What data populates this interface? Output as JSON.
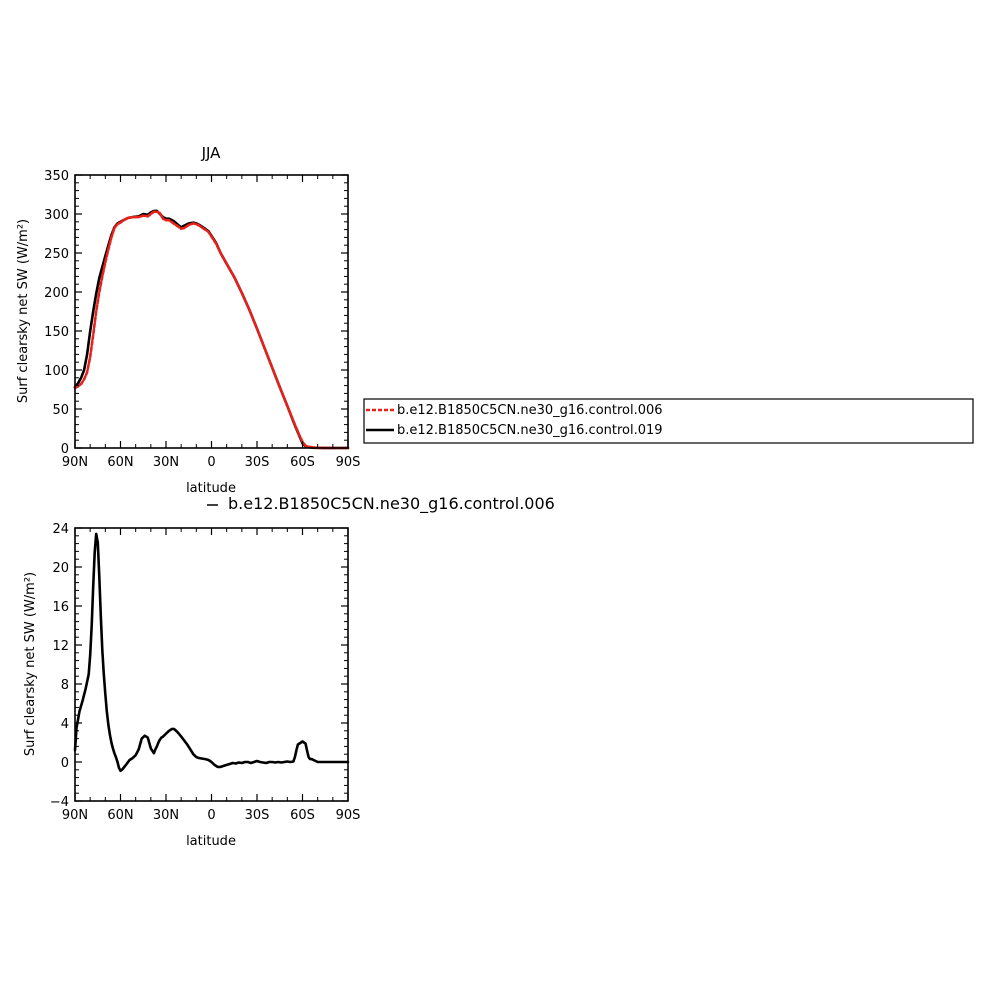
{
  "chart_data": [
    {
      "type": "line",
      "title": "JJA",
      "xlabel": "latitude",
      "ylabel": "Surf clearsky net SW (W/m²)",
      "xlim": [
        90,
        -90
      ],
      "ylim": [
        0,
        350
      ],
      "x_ticks": [
        90,
        60,
        30,
        0,
        -30,
        -60,
        -90
      ],
      "x_tick_labels": [
        "90N",
        "60N",
        "30N",
        "0",
        "30S",
        "60S",
        "90S"
      ],
      "y_ticks": [
        0,
        50,
        100,
        150,
        200,
        250,
        300,
        350
      ],
      "y_tick_labels": [
        "0",
        "50",
        "100",
        "150",
        "200",
        "250",
        "300",
        "350"
      ],
      "legend_placement": "right",
      "series": [
        {
          "name": "b.e12.B1850C5CN.ne30_g16.control.006",
          "color": "#e8211b",
          "style": "dashed",
          "x": [
            90,
            88,
            86,
            84,
            82,
            80,
            78,
            76,
            74,
            72,
            70,
            68,
            66,
            64,
            62,
            60,
            58,
            55,
            52,
            48,
            45,
            42,
            40,
            38,
            36,
            34,
            32,
            30,
            28,
            25,
            22,
            20,
            18,
            15,
            12,
            10,
            8,
            5,
            2,
            0,
            -3,
            -6,
            -10,
            -15,
            -20,
            -25,
            -30,
            -35,
            -40,
            -45,
            -50,
            -55,
            -58,
            -60,
            -62,
            -64,
            -66,
            -68,
            -70,
            -74,
            -78,
            -82,
            -86,
            -90
          ],
          "y": [
            77,
            79,
            82,
            88,
            97,
            117,
            145,
            175,
            200,
            220,
            238,
            255,
            270,
            282,
            287,
            289,
            292,
            295,
            296,
            296,
            298,
            297,
            300,
            303,
            303,
            301,
            294,
            292,
            292,
            288,
            284,
            281,
            282,
            286,
            288,
            287,
            285,
            281,
            277,
            271,
            262,
            250,
            236,
            219,
            199,
            177,
            153,
            128,
            103,
            78,
            54,
            30,
            16,
            8,
            3,
            1.5,
            1,
            0.5,
            0.3,
            0.1,
            0,
            0,
            0,
            0
          ]
        },
        {
          "name": "b.e12.B1850C5CN.ne30_g16.control.019",
          "color": "#000000",
          "style": "solid",
          "x": [
            90,
            88,
            86,
            84,
            82,
            80,
            78,
            76,
            74,
            72,
            70,
            68,
            66,
            64,
            62,
            60,
            58,
            55,
            52,
            48,
            45,
            42,
            40,
            38,
            36,
            34,
            32,
            30,
            28,
            25,
            22,
            20,
            18,
            15,
            12,
            10,
            8,
            5,
            2,
            0,
            -3,
            -6,
            -10,
            -15,
            -20,
            -25,
            -30,
            -35,
            -40,
            -45,
            -50,
            -55,
            -58,
            -60,
            -62,
            -64,
            -66,
            -68,
            -70,
            -74,
            -78,
            -82,
            -86,
            -90
          ],
          "y": [
            78,
            83,
            90,
            100,
            120,
            150,
            175,
            198,
            218,
            232,
            246,
            260,
            273,
            283,
            288,
            290,
            292,
            295,
            296,
            297,
            300,
            299,
            302,
            304,
            304,
            300,
            296,
            294,
            294,
            291,
            286,
            283,
            285,
            288,
            289,
            288,
            286,
            282,
            278,
            272,
            263,
            250,
            236,
            219,
            199,
            177,
            153,
            128,
            103,
            78,
            54,
            29,
            15,
            6,
            2,
            1,
            0.5,
            0.3,
            0.2,
            0,
            0,
            0,
            0,
            0
          ]
        }
      ]
    },
    {
      "type": "line",
      "title": "b.e12.B1850C5CN.ne30_g16.control.006",
      "xlabel": "latitude",
      "ylabel": "Surf clearsky net SW (W/m²)",
      "xlim": [
        90,
        -90
      ],
      "ylim": [
        -4,
        24
      ],
      "x_ticks": [
        90,
        60,
        30,
        0,
        -30,
        -60,
        -90
      ],
      "x_tick_labels": [
        "90N",
        "60N",
        "30N",
        "0",
        "30S",
        "60S",
        "90S"
      ],
      "y_ticks": [
        -4,
        0,
        4,
        8,
        12,
        16,
        20,
        24
      ],
      "y_tick_labels": [
        "−4",
        "0",
        "4",
        "8",
        "12",
        "16",
        "20",
        "24"
      ],
      "series": [
        {
          "color": "#000000",
          "style": "solid",
          "x": [
            90,
            89,
            87,
            85,
            83,
            81,
            80,
            79,
            78,
            77,
            76,
            75,
            74,
            73,
            72,
            71,
            70,
            69,
            68,
            67,
            66,
            65,
            64,
            63,
            62,
            61,
            60,
            59,
            58,
            56,
            54,
            52,
            50,
            48,
            46,
            44,
            42,
            40,
            38,
            37,
            36,
            35,
            34,
            33,
            32,
            30,
            28,
            26,
            25,
            24,
            22,
            20,
            18,
            16,
            14,
            12,
            10,
            8,
            6,
            4,
            2,
            0,
            -2,
            -4,
            -6,
            -8,
            -10,
            -12,
            -14,
            -16,
            -18,
            -20,
            -22,
            -24,
            -26,
            -28,
            -30,
            -32,
            -34,
            -36,
            -38,
            -40,
            -42,
            -44,
            -46,
            -48,
            -50,
            -52,
            -54,
            -55,
            -56,
            -57,
            -58,
            -59,
            -60,
            -61,
            -62,
            -63,
            -64,
            -65,
            -66,
            -68,
            -70,
            -74,
            -78,
            -82,
            -86,
            -90
          ],
          "y": [
            1.2,
            3.5,
            5.2,
            6.3,
            7.5,
            9,
            11,
            14,
            18,
            21.5,
            23.4,
            22.5,
            19,
            15,
            11.5,
            9,
            7,
            5.2,
            3.8,
            2.8,
            2,
            1.4,
            0.9,
            0.5,
            0,
            -0.6,
            -0.9,
            -0.8,
            -0.6,
            -0.2,
            0.2,
            0.4,
            0.7,
            1.3,
            2.4,
            2.7,
            2.5,
            1.4,
            0.9,
            1.3,
            1.6,
            2,
            2.3,
            2.5,
            2.6,
            2.9,
            3.2,
            3.4,
            3.4,
            3.3,
            3,
            2.6,
            2.2,
            1.8,
            1.3,
            0.8,
            0.5,
            0.4,
            0.35,
            0.3,
            0.2,
            0,
            -0.3,
            -0.5,
            -0.5,
            -0.4,
            -0.3,
            -0.2,
            -0.1,
            -0.15,
            -0.05,
            -0.1,
            0,
            0,
            -0.1,
            0,
            0.1,
            0,
            -0.05,
            -0.1,
            0,
            0,
            -0.05,
            0,
            -0.05,
            0,
            0.05,
            0,
            0.05,
            0.5,
            1.2,
            1.8,
            1.9,
            2,
            2.1,
            2,
            1.9,
            1.2,
            0.5,
            0.3,
            0.3,
            0.15,
            0,
            0,
            0,
            0,
            0,
            0
          ]
        }
      ]
    }
  ]
}
